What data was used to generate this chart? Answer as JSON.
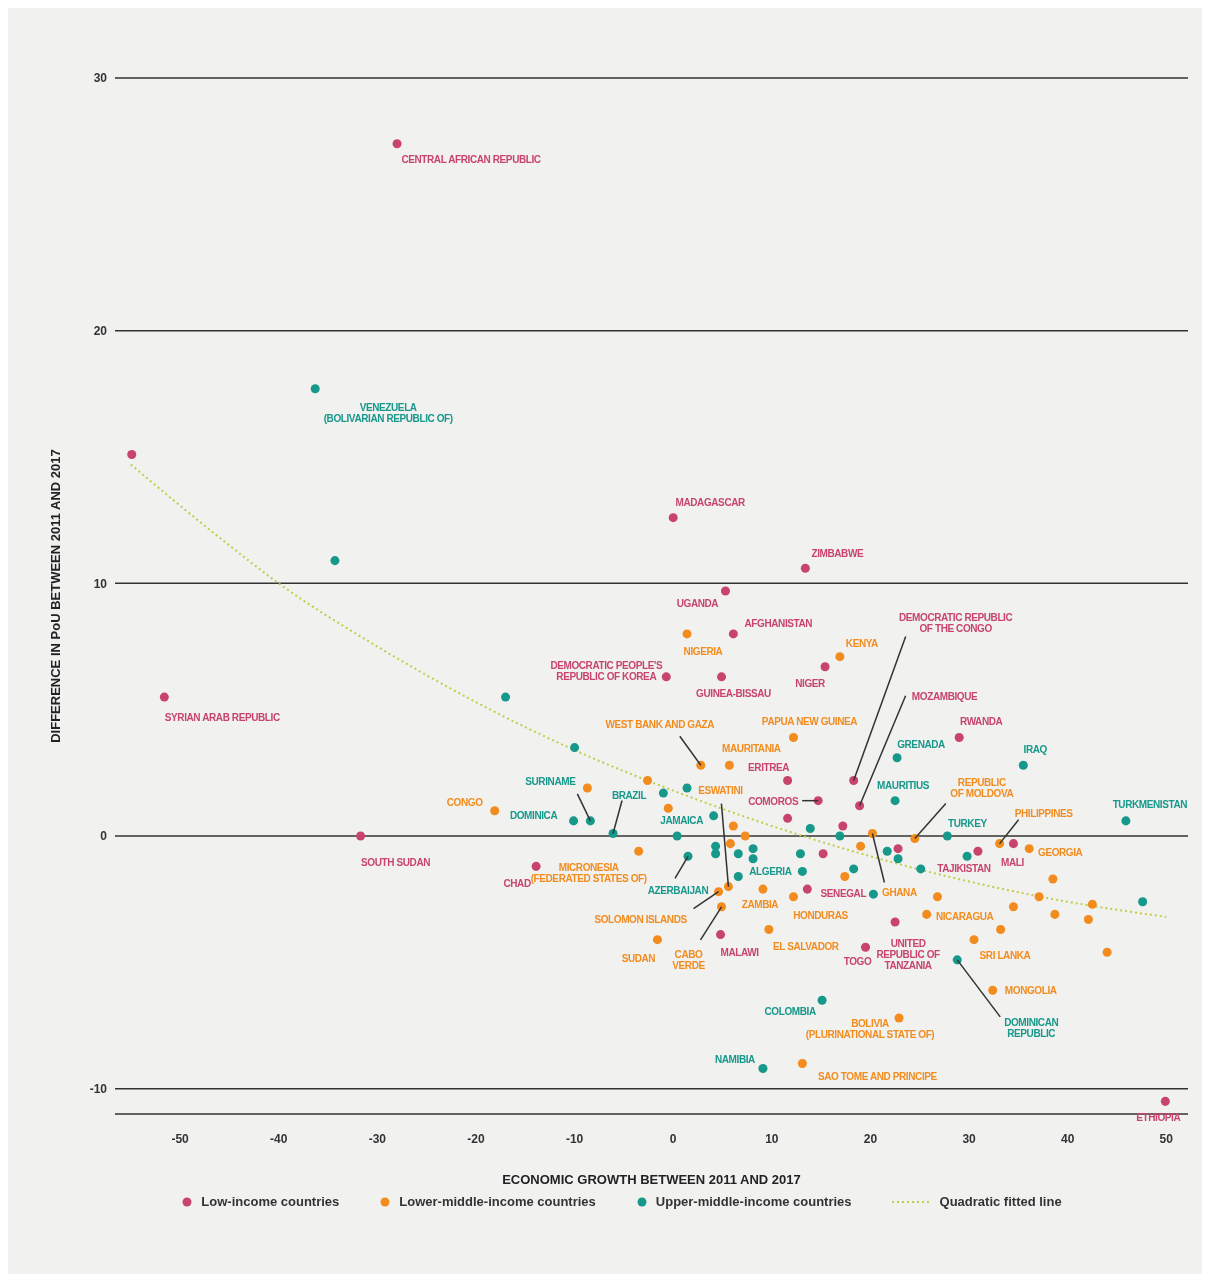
{
  "chart_data": {
    "type": "scatter",
    "xlabel": "ECONOMIC GROWTH BETWEEN 2011 AND 2017",
    "ylabel": "DIFFERENCE IN PoU BETWEEN 2011 AND 2017",
    "xlim": [
      -56.6,
      52.2
    ],
    "ylim": [
      -11,
      30
    ],
    "xticks": [
      -50,
      -40,
      -30,
      -20,
      -10,
      0,
      10,
      20,
      30,
      40,
      50
    ],
    "yticks": [
      -10,
      0,
      10,
      20,
      30
    ],
    "grid": "y",
    "legend": "bottom",
    "marker": "circle",
    "series": [
      {
        "name": "Low-income countries",
        "color": "#c8446b",
        "x": [
          -28.0,
          -54.9,
          -51.6,
          -31.7,
          -13.9,
          0.0,
          13.4,
          5.3,
          6.1,
          -0.7,
          4.9,
          15.4,
          11.6,
          14.7,
          18.3,
          18.9,
          29.0,
          34.5,
          30.9,
          13.6,
          4.8,
          19.5,
          22.5,
          49.9,
          11.6,
          17.2,
          22.8,
          15.2
        ],
        "values": [
          27.4,
          15.1,
          5.5,
          0.0,
          -1.2,
          12.6,
          10.6,
          9.7,
          8.0,
          6.3,
          6.3,
          6.7,
          2.2,
          1.4,
          2.2,
          1.2,
          3.9,
          -0.3,
          -0.6,
          -2.1,
          -3.9,
          -4.4,
          -3.4,
          -10.5,
          0.7,
          0.4,
          -0.5,
          -0.7
        ]
      },
      {
        "name": "Lower-middle-income countries",
        "color": "#f28c1e",
        "x": [
          -18.1,
          -3.5,
          4.6,
          5.6,
          4.9,
          -1.6,
          9.1,
          12.2,
          9.7,
          1.4,
          16.9,
          2.8,
          5.7,
          12.2,
          -8.7,
          -2.6,
          20.2,
          24.5,
          33.1,
          36.1,
          25.7,
          30.5,
          32.4,
          22.9,
          13.1,
          26.8,
          38.5,
          37.1,
          34.5,
          33.2,
          38.7,
          42.5,
          42.1,
          44.0,
          -0.5,
          6.1,
          5.8,
          7.3,
          17.4,
          19.0
        ],
        "values": [
          1.0,
          -0.6,
          -2.2,
          -2.0,
          -2.8,
          -4.1,
          -2.1,
          -2.4,
          -3.7,
          8.0,
          7.1,
          2.8,
          2.8,
          3.9,
          1.9,
          2.2,
          0.1,
          -0.1,
          -0.3,
          -0.5,
          -3.1,
          -4.1,
          -6.1,
          -7.2,
          -9.0,
          -2.4,
          -1.7,
          -2.4,
          -2.8,
          -3.7,
          -3.1,
          -2.7,
          -3.3,
          -4.6,
          1.1,
          0.4,
          -0.3,
          0.0,
          -1.6,
          -0.4
        ]
      },
      {
        "name": "Upper-middle-income countries",
        "color": "#16988a",
        "x": [
          -36.3,
          -34.3,
          -17.0,
          -10.0,
          -10.1,
          -8.4,
          -6.1,
          4.1,
          1.5,
          13.1,
          -1.0,
          1.4,
          0.4,
          4.3,
          4.3,
          6.6,
          8.1,
          8.1,
          6.6,
          13.9,
          16.9,
          18.3,
          20.3,
          12.9,
          15.1,
          9.1,
          22.7,
          22.5,
          35.5,
          27.8,
          45.9,
          28.8,
          25.1,
          29.8,
          22.8,
          21.7,
          47.6
        ],
        "values": [
          17.7,
          10.9,
          5.5,
          3.5,
          0.6,
          0.6,
          0.1,
          0.8,
          -0.8,
          -1.4,
          1.7,
          1.9,
          0.0,
          -0.4,
          -0.7,
          -0.7,
          -0.5,
          -0.9,
          -1.6,
          0.3,
          0.0,
          -1.3,
          -2.3,
          -0.7,
          -6.5,
          -9.2,
          3.1,
          1.4,
          2.8,
          0.0,
          0.6,
          -4.9,
          -1.3,
          -0.8,
          -0.9,
          -0.6,
          -2.6
        ]
      },
      {
        "name": "Quadratic fitted line",
        "color": "#c3cc4a",
        "type": "line",
        "line_style": "dotted",
        "marker": "none",
        "x": [
          -55,
          -45,
          -40,
          -30,
          -20,
          -10,
          0,
          10,
          20,
          30,
          40,
          50
        ],
        "values": [
          14.7,
          11.5,
          10.0,
          7.5,
          5.3,
          3.4,
          1.8,
          0.4,
          -0.8,
          -1.8,
          -2.6,
          -3.2
        ]
      }
    ],
    "annotations": [
      {
        "text": "CENTRAL AFRICAN REPUBLIC",
        "x": -28.0,
        "y": 27.4
      },
      {
        "text": "VENEZUELA\n(BOLIVARIAN REPUBLIC OF)",
        "x": -36.3,
        "y": 17.7
      },
      {
        "text": "SYRIAN ARAB REPUBLIC",
        "x": -51.6,
        "y": 5.5
      },
      {
        "text": "SOUTH SUDAN",
        "x": -31.7,
        "y": 0.0
      },
      {
        "text": "CHAD",
        "x": -13.9,
        "y": -1.2
      },
      {
        "text": "CONGO",
        "x": -18.1,
        "y": 1.0
      },
      {
        "text": "DOMINICA",
        "x": -10.1,
        "y": 0.6
      },
      {
        "text": "SURINAME",
        "x": -8.4,
        "y": 0.6
      },
      {
        "text": "BRAZIL",
        "x": -6.1,
        "y": 0.1
      },
      {
        "text": "MICRONESIA\n(FEDERATED STATES OF)",
        "x": -3.5,
        "y": -0.6
      },
      {
        "text": "JAMAICA",
        "x": 4.1,
        "y": 0.8
      },
      {
        "text": "AZERBAIJAN",
        "x": 1.5,
        "y": -0.8
      },
      {
        "text": "ESWATINI",
        "x": 5.6,
        "y": -2.0
      },
      {
        "text": "SOLOMON ISLANDS",
        "x": 4.6,
        "y": -2.2
      },
      {
        "text": "CABO\nVERDE",
        "x": 4.9,
        "y": -2.8
      },
      {
        "text": "SUDAN",
        "x": -1.6,
        "y": -4.1
      },
      {
        "text": "MALAWI",
        "x": 4.8,
        "y": -3.9
      },
      {
        "text": "ZAMBIA",
        "x": 9.1,
        "y": -2.1
      },
      {
        "text": "ALGERIA",
        "x": 13.1,
        "y": -1.4
      },
      {
        "text": "SENEGAL",
        "x": 13.6,
        "y": -2.1
      },
      {
        "text": "HONDURAS",
        "x": 12.2,
        "y": -2.4
      },
      {
        "text": "EL SALVADOR",
        "x": 9.7,
        "y": -3.7
      },
      {
        "text": "TOGO",
        "x": 19.5,
        "y": -4.4
      },
      {
        "text": "UNITED\nREPUBLIC OF\nTANZANIA",
        "x": 22.5,
        "y": -3.4
      },
      {
        "text": "GHANA",
        "x": 20.2,
        "y": 0.1
      },
      {
        "text": "COLOMBIA",
        "x": 15.1,
        "y": -6.5
      },
      {
        "text": "BOLIVIA\n(PLURINATIONAL STATE OF)",
        "x": 22.9,
        "y": -7.2
      },
      {
        "text": "NAMIBIA",
        "x": 9.1,
        "y": -9.2
      },
      {
        "text": "SAO TOME AND PRINCIPE",
        "x": 13.1,
        "y": -9.0
      },
      {
        "text": "MADAGASCAR",
        "x": 0.0,
        "y": 12.6
      },
      {
        "text": "ZIMBABWE",
        "x": 13.4,
        "y": 10.6
      },
      {
        "text": "UGANDA",
        "x": 5.3,
        "y": 9.7
      },
      {
        "text": "AFGHANISTAN",
        "x": 6.1,
        "y": 8.0
      },
      {
        "text": "NIGERIA",
        "x": 1.4,
        "y": 8.0
      },
      {
        "text": "KENYA",
        "x": 16.9,
        "y": 7.1
      },
      {
        "text": "DEMOCRATIC PEOPLE'S\nREPUBLIC OF KOREA",
        "x": -0.7,
        "y": 6.3
      },
      {
        "text": "GUINEA-BISSAU",
        "x": 4.9,
        "y": 6.3
      },
      {
        "text": "NIGER",
        "x": 15.4,
        "y": 6.7
      },
      {
        "text": "WEST BANK AND GAZA",
        "x": 2.8,
        "y": 2.8
      },
      {
        "text": "PAPUA NEW GUINEA",
        "x": 12.2,
        "y": 3.9
      },
      {
        "text": "MAURITANIA",
        "x": 5.7,
        "y": 2.8
      },
      {
        "text": "ERITREA",
        "x": 11.6,
        "y": 2.2
      },
      {
        "text": "COMOROS",
        "x": 14.7,
        "y": 1.4
      },
      {
        "text": "DEMOCRATIC REPUBLIC\nOF THE CONGO",
        "x": 18.3,
        "y": 2.2
      },
      {
        "text": "MOZAMBIQUE",
        "x": 18.9,
        "y": 1.2
      },
      {
        "text": "RWANDA",
        "x": 29.0,
        "y": 3.9
      },
      {
        "text": "GRENADA",
        "x": 22.7,
        "y": 3.1
      },
      {
        "text": "MAURITIUS",
        "x": 22.5,
        "y": 1.4
      },
      {
        "text": "REPUBLIC\nOF MOLDOVA",
        "x": 24.5,
        "y": -0.1
      },
      {
        "text": "IRAQ",
        "x": 35.5,
        "y": 2.8
      },
      {
        "text": "TURKEY",
        "x": 27.8,
        "y": 0.0
      },
      {
        "text": "PHILIPPINES",
        "x": 33.1,
        "y": -0.3
      },
      {
        "text": "TURKMENISTAN",
        "x": 45.9,
        "y": 0.6
      },
      {
        "text": "TAJIKISTAN",
        "x": 30.9,
        "y": -0.6
      },
      {
        "text": "MALI",
        "x": 34.5,
        "y": -0.3
      },
      {
        "text": "GEORGIA",
        "x": 36.1,
        "y": -0.5
      },
      {
        "text": "NICARAGUA",
        "x": 25.7,
        "y": -3.1
      },
      {
        "text": "SRI LANKA",
        "x": 30.5,
        "y": -4.1
      },
      {
        "text": "MONGOLIA",
        "x": 32.4,
        "y": -6.1
      },
      {
        "text": "DOMINICAN\nREPUBLIC",
        "x": 28.8,
        "y": -4.9
      },
      {
        "text": "ETHIOPIA",
        "x": 49.9,
        "y": -10.5
      }
    ]
  }
}
